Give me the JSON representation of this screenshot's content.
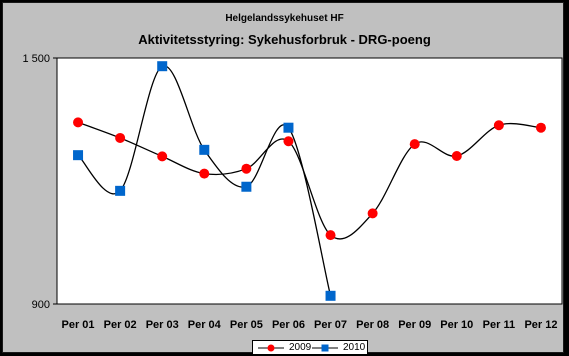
{
  "chart_data": {
    "type": "line",
    "title": "Aktivitetsstyring: Sykehusforbruk - DRG-poeng",
    "subtitle": "Helgelandssykehuset HF",
    "xlabel": "",
    "ylabel": "",
    "categories": [
      "Per 01",
      "Per 02",
      "Per 03",
      "Per 04",
      "Per 05",
      "Per 06",
      "Per 07",
      "Per 08",
      "Per 09",
      "Per 10",
      "Per 11",
      "Per 12"
    ],
    "ylim": [
      900,
      1500
    ],
    "yticks": [
      "1 500",
      "900"
    ],
    "grid": false,
    "legend_position": "bottom",
    "series": [
      {
        "name": "2009",
        "color": "#ff0000",
        "line_color": "#000000",
        "marker": "circle",
        "values": [
          1343,
          1305,
          1260,
          1218,
          1230,
          1297,
          1068,
          1121,
          1290,
          1261,
          1336,
          1330
        ]
      },
      {
        "name": "2010",
        "color": "#0066cc",
        "line_color": "#000000",
        "marker": "square",
        "values": [
          1263,
          1176,
          1480,
          1276,
          1186,
          1330,
          920,
          null,
          null,
          null,
          null,
          null
        ]
      }
    ]
  }
}
